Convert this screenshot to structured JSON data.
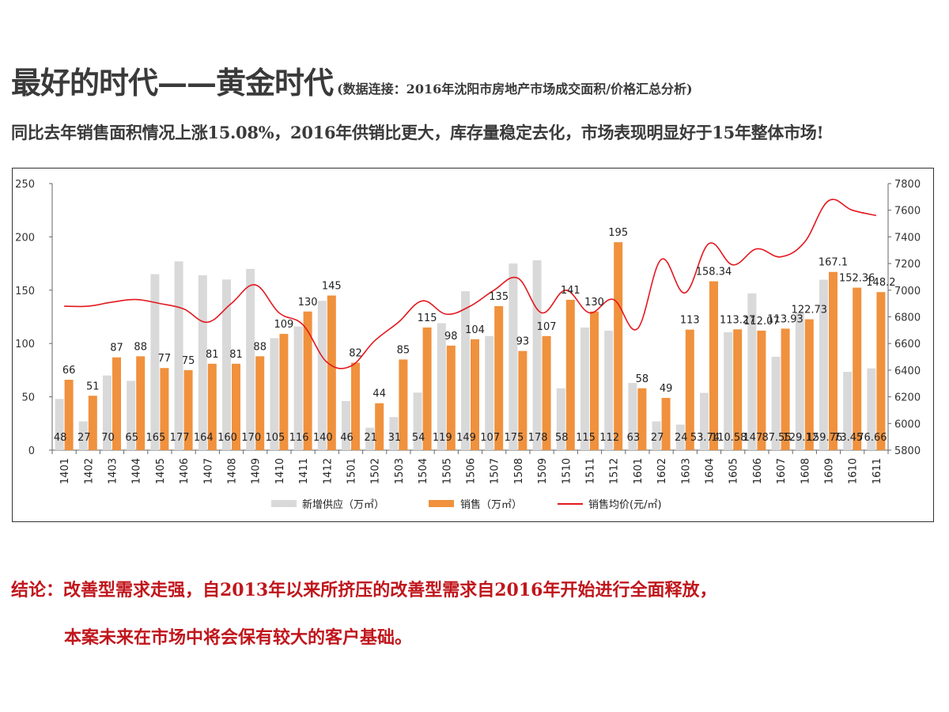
{
  "header": {
    "title_main": "最好的时代——黄金时代",
    "title_sub": "(数据连接：2016年沈阳市房地产市场成交面积/价格汇总分析)",
    "subtitle": "同比去年销售面积情况上涨15.08%，2016年供销比更大，库存量稳定去化，市场表现明显好于15年整体市场!"
  },
  "conclusion": {
    "line1": "结论：改善型需求走强，自2013年以来所挤压的改善型需求自2016年开始进行全面释放，",
    "line2": "本案未来在市场中将会保有较大的客户基础。"
  },
  "legend": {
    "supply": "新增供应（万㎡）",
    "sales": "销售（万㎡）",
    "price": "销售均价(元/㎡)"
  },
  "colors": {
    "supply": "#d9d9d9",
    "sales": "#f0913d",
    "price": "#e3181f",
    "title": "#3a3a3a",
    "conclusion": "#c0161c"
  },
  "chart_data": {
    "type": "bar",
    "categories": [
      "1401",
      "1402",
      "1403",
      "1404",
      "1405",
      "1406",
      "1407",
      "1408",
      "1409",
      "1410",
      "1411",
      "1412",
      "1501",
      "1502",
      "1503",
      "1504",
      "1505",
      "1506",
      "1507",
      "1508",
      "1509",
      "1510",
      "1511",
      "1512",
      "1601",
      "1602",
      "1603",
      "1604",
      "1605",
      "1606",
      "1607",
      "1608",
      "1609",
      "1610",
      "1611"
    ],
    "series": [
      {
        "name": "新增供应（万㎡）",
        "kind": "bar",
        "axis": "left",
        "values": [
          48,
          27,
          70,
          65,
          165,
          177,
          164,
          160,
          170,
          105,
          116,
          140,
          46,
          21,
          31,
          54,
          119,
          149,
          107,
          175,
          178,
          58,
          115,
          112,
          63,
          27,
          24,
          53.74,
          110.58,
          147,
          87.55,
          129.12,
          159.76,
          73.45,
          76.66
        ],
        "labels": [
          "48",
          "27",
          "70",
          "65",
          "165",
          "177",
          "164",
          "160",
          "170",
          "105",
          "116",
          "140",
          "46",
          "21",
          "31",
          "54",
          "119",
          "149",
          "107",
          "175",
          "178",
          "58",
          "115",
          "112",
          "63",
          "27",
          "24",
          "53.74",
          "110.58",
          "147",
          "87.55",
          "129.12",
          "159.76",
          "73.45",
          "76.66"
        ]
      },
      {
        "name": "销售（万㎡）",
        "kind": "bar",
        "axis": "left",
        "values": [
          66,
          51,
          87,
          88,
          77,
          75,
          81,
          81,
          88,
          109,
          130,
          145,
          82,
          44,
          85,
          115,
          98,
          104,
          135,
          93,
          107,
          141,
          130,
          195,
          58,
          49,
          113,
          158.34,
          113.27,
          112.07,
          113.93,
          122.73,
          167.1,
          152.36,
          148.2
        ],
        "labels": [
          "66",
          "51",
          "87",
          "88",
          "77",
          "75",
          "81",
          "81",
          "88",
          "109",
          "130",
          "145",
          "82",
          "44",
          "85",
          "115",
          "98",
          "104",
          "135",
          "93",
          "107",
          "141",
          "130",
          "195",
          "58",
          "49",
          "113",
          "158.34",
          "113.27",
          "112.07",
          "113.93",
          "122.73",
          "167.1",
          "152.36",
          "148.2"
        ]
      },
      {
        "name": "销售均价(元/㎡)",
        "kind": "line",
        "axis": "right",
        "values": [
          6880,
          6880,
          6910,
          6930,
          6900,
          6860,
          6760,
          6900,
          7040,
          6830,
          6740,
          6460,
          6430,
          6620,
          6760,
          6920,
          6820,
          6880,
          7000,
          7090,
          6830,
          7000,
          6830,
          6930,
          6710,
          7230,
          6980,
          7350,
          7190,
          7310,
          7250,
          7360,
          7670,
          7600,
          7560
        ]
      }
    ],
    "ylim_left": [
      0,
      250
    ],
    "yticks_left": [
      0,
      50,
      100,
      150,
      200,
      250
    ],
    "ylim_right": [
      5800,
      7800
    ],
    "yticks_right": [
      5800,
      6000,
      6200,
      6400,
      6600,
      6800,
      7000,
      7200,
      7400,
      7600,
      7800
    ],
    "grid": false,
    "legend_position": "bottom"
  }
}
